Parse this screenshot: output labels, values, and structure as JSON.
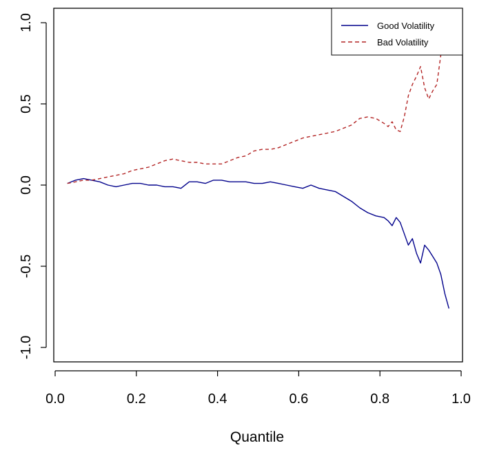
{
  "chart_data": {
    "type": "line",
    "title": "",
    "xlabel": "Quantile",
    "ylabel": "",
    "xlim": [
      0.0,
      1.0
    ],
    "ylim": [
      -1.0,
      1.0
    ],
    "grid": false,
    "legend_position": "top-right",
    "x_ticks": [
      "0.0",
      "0.2",
      "0.4",
      "0.6",
      "0.8",
      "1.0"
    ],
    "y_ticks": [
      "-1.0",
      "-0.5",
      "0.0",
      "0.5",
      "1.0"
    ],
    "series": [
      {
        "name": "Good Volatility",
        "color": "#00008B",
        "line_style": "solid",
        "x": [
          0.03,
          0.05,
          0.07,
          0.09,
          0.11,
          0.13,
          0.15,
          0.17,
          0.19,
          0.21,
          0.23,
          0.25,
          0.27,
          0.29,
          0.31,
          0.33,
          0.35,
          0.37,
          0.39,
          0.41,
          0.43,
          0.45,
          0.47,
          0.49,
          0.51,
          0.53,
          0.55,
          0.57,
          0.59,
          0.61,
          0.63,
          0.65,
          0.67,
          0.69,
          0.71,
          0.73,
          0.75,
          0.77,
          0.79,
          0.81,
          0.82,
          0.83,
          0.84,
          0.85,
          0.86,
          0.87,
          0.88,
          0.89,
          0.9,
          0.91,
          0.92,
          0.93,
          0.94,
          0.95,
          0.96,
          0.97
        ],
        "values": [
          0.01,
          0.03,
          0.04,
          0.03,
          0.02,
          0.0,
          -0.01,
          0.0,
          0.01,
          0.01,
          0.0,
          0.0,
          -0.01,
          -0.01,
          -0.02,
          0.02,
          0.02,
          0.01,
          0.03,
          0.03,
          0.02,
          0.02,
          0.02,
          0.01,
          0.01,
          0.02,
          0.01,
          0.0,
          -0.01,
          -0.02,
          0.0,
          -0.02,
          -0.03,
          -0.04,
          -0.07,
          -0.1,
          -0.14,
          -0.17,
          -0.19,
          -0.2,
          -0.22,
          -0.25,
          -0.2,
          -0.23,
          -0.3,
          -0.37,
          -0.33,
          -0.42,
          -0.48,
          -0.37,
          -0.4,
          -0.44,
          -0.48,
          -0.55,
          -0.67,
          -0.76
        ]
      },
      {
        "name": "Bad Volatility",
        "color": "#B22222",
        "line_style": "dashed",
        "x": [
          0.03,
          0.05,
          0.07,
          0.09,
          0.11,
          0.13,
          0.15,
          0.17,
          0.19,
          0.21,
          0.23,
          0.25,
          0.27,
          0.29,
          0.31,
          0.33,
          0.35,
          0.37,
          0.39,
          0.41,
          0.43,
          0.45,
          0.47,
          0.49,
          0.51,
          0.53,
          0.55,
          0.57,
          0.59,
          0.61,
          0.63,
          0.65,
          0.67,
          0.69,
          0.71,
          0.73,
          0.75,
          0.77,
          0.79,
          0.81,
          0.82,
          0.83,
          0.84,
          0.85,
          0.86,
          0.87,
          0.88,
          0.89,
          0.9,
          0.91,
          0.92,
          0.93,
          0.94,
          0.95
        ],
        "values": [
          0.01,
          0.02,
          0.03,
          0.03,
          0.04,
          0.05,
          0.06,
          0.07,
          0.09,
          0.1,
          0.11,
          0.13,
          0.15,
          0.16,
          0.15,
          0.14,
          0.14,
          0.13,
          0.13,
          0.13,
          0.15,
          0.17,
          0.18,
          0.21,
          0.22,
          0.22,
          0.23,
          0.25,
          0.27,
          0.29,
          0.3,
          0.31,
          0.32,
          0.33,
          0.35,
          0.37,
          0.41,
          0.42,
          0.41,
          0.38,
          0.36,
          0.39,
          0.34,
          0.33,
          0.42,
          0.55,
          0.62,
          0.67,
          0.73,
          0.6,
          0.53,
          0.58,
          0.62,
          0.8
        ]
      }
    ]
  }
}
